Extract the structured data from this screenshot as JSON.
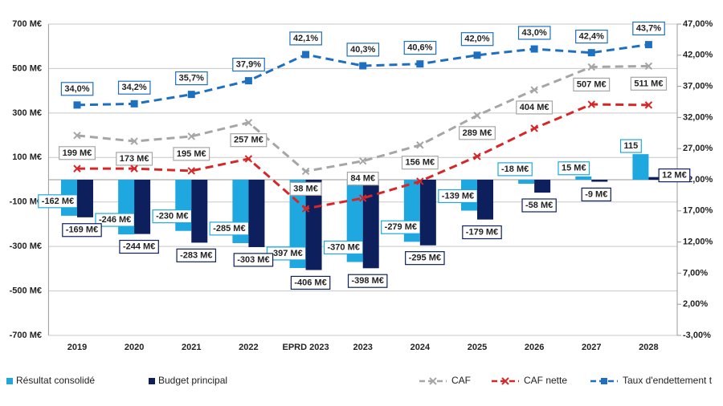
{
  "chart_data": {
    "type": "bar-line",
    "categories": [
      "2019",
      "2020",
      "2021",
      "2022",
      "EPRD 2023",
      "2023",
      "2024",
      "2025",
      "2026",
      "2027",
      "2028"
    ],
    "ylim": [
      -700,
      700
    ],
    "yticks": [
      {
        "value": -700,
        "label": "-700 M€"
      },
      {
        "value": -500,
        "label": "-500 M€"
      },
      {
        "value": -300,
        "label": "-300 M€"
      },
      {
        "value": -100,
        "label": "-100 M€"
      },
      {
        "value": 100,
        "label": "100 M€"
      },
      {
        "value": 300,
        "label": "300 M€"
      },
      {
        "value": 500,
        "label": "500 M€"
      },
      {
        "value": 700,
        "label": "700 M€"
      }
    ],
    "y2lim": [
      -3,
      47
    ],
    "y2ticks": [
      {
        "value": -3,
        "label": "-3,00%"
      },
      {
        "value": 2,
        "label": "2,00%"
      },
      {
        "value": 7,
        "label": "7,00%"
      },
      {
        "value": 12,
        "label": "12,00%"
      },
      {
        "value": 17,
        "label": "17,00%"
      },
      {
        "value": 22,
        "label": "22,00%"
      },
      {
        "value": 27,
        "label": "27,00%"
      },
      {
        "value": 32,
        "label": "32,00%"
      },
      {
        "value": 37,
        "label": "37,00%"
      },
      {
        "value": 42,
        "label": "42,00%"
      },
      {
        "value": 47,
        "label": "47,00%"
      }
    ],
    "grid": true,
    "legend": "bottom",
    "series": [
      {
        "name": "Résultat consolidé",
        "type": "bar",
        "color": "#1fa8e0",
        "values": [
          -162,
          -246,
          -230,
          -285,
          -397,
          -370,
          -279,
          -139,
          -18,
          15,
          115
        ],
        "value_labels": [
          "-162 M€",
          "-246 M€",
          "-230 M€",
          "-285 M€",
          "-397 M€",
          "-370 M€",
          "-279 M€",
          "-139 M€",
          "-18 M€",
          "15 M€",
          "115"
        ]
      },
      {
        "name": "Budget principal",
        "type": "bar",
        "color": "#0d1f5c",
        "values": [
          -169,
          -244,
          -283,
          -303,
          -406,
          -398,
          -295,
          -179,
          -58,
          -9,
          12
        ],
        "value_labels": [
          "-169 M€",
          "-244 M€",
          "-283 M€",
          "-303 M€",
          "-406 M€",
          "-398 M€",
          "-295 M€",
          "-179 M€",
          "-58 M€",
          "-9 M€",
          "12 M€"
        ]
      },
      {
        "name": "CAF",
        "type": "line",
        "marker": "x",
        "color": "#a6a6a6",
        "values": [
          199,
          173,
          195,
          257,
          38,
          84,
          156,
          289,
          404,
          507,
          511
        ],
        "value_labels": [
          "199 M€",
          "173 M€",
          "195 M€",
          "257 M€",
          "38 M€",
          "84 M€",
          "156 M€",
          "289 M€",
          "404 M€",
          "507 M€",
          "511 M€"
        ]
      },
      {
        "name": "CAF nette",
        "type": "line",
        "marker": "x",
        "color": "#d62728",
        "values": [
          50,
          50,
          40,
          94,
          -130,
          -83,
          -7,
          105,
          231,
          339,
          336
        ]
      },
      {
        "name": "Taux d'endettement t",
        "type": "line",
        "marker": "square",
        "color": "#1f6fc0",
        "axis": "y2",
        "values": [
          34.0,
          34.2,
          35.7,
          37.9,
          42.1,
          40.3,
          40.6,
          42.0,
          43.0,
          42.4,
          43.7
        ],
        "value_labels": [
          "34,0%",
          "34,2%",
          "35,7%",
          "37,9%",
          "42,1%",
          "40,3%",
          "40,6%",
          "42,0%",
          "43,0%",
          "42,4%",
          "43,7%"
        ]
      }
    ]
  }
}
